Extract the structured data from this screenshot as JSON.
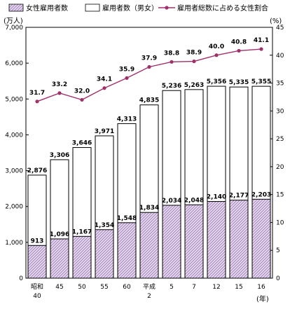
{
  "chart_data": {
    "type": "bar",
    "categories": [
      "昭和\n40",
      "45",
      "50",
      "55",
      "60",
      "平成\n2",
      "5",
      "7",
      "12",
      "15",
      "16"
    ],
    "series": [
      {
        "name": "雇用者数（男女）",
        "values": [
          2876,
          3306,
          3646,
          3971,
          4313,
          4835,
          5236,
          5263,
          5356,
          5335,
          5355
        ],
        "color": "#ffffff"
      },
      {
        "name": "女性雇用者数",
        "values": [
          913,
          1096,
          1167,
          1354,
          1548,
          1834,
          2034,
          2048,
          2140,
          2177,
          2203
        ],
        "color": "#d9c8e6"
      },
      {
        "name": "雇用者総数に占める女性割合",
        "values": [
          31.7,
          33.2,
          32.0,
          34.1,
          35.9,
          37.9,
          38.8,
          38.9,
          40.0,
          40.8,
          41.1
        ],
        "color": "#a0306a",
        "axis": "right"
      }
    ],
    "bar_labels": {
      "total": [
        "2,876",
        "3,306",
        "3,646",
        "3,971",
        "4,313",
        "4,835",
        "5,236",
        "5,263",
        "5,356",
        "5,335",
        "5,355"
      ],
      "female": [
        "913",
        "1,096",
        "1,167",
        "1,354",
        "1,548",
        "1,834",
        "2,034",
        "2,048",
        "2,140",
        "2,177",
        "2,203"
      ],
      "ratio": [
        "31.7",
        "33.2",
        "32.0",
        "34.1",
        "35.9",
        "37.9",
        "38.8",
        "38.9",
        "40.0",
        "40.8",
        "41.1"
      ]
    },
    "left_axis": {
      "unit": "(万人)",
      "ylim": [
        0,
        7000
      ],
      "ticks": [
        "0",
        "1,000",
        "2,000",
        "3,000",
        "4,000",
        "5,000",
        "6,000",
        "7,000"
      ]
    },
    "right_axis": {
      "unit": "(%)",
      "ylim": [
        0,
        45
      ],
      "ticks": [
        "0",
        "5",
        "10",
        "15",
        "20",
        "25",
        "30",
        "35",
        "40",
        "45"
      ]
    },
    "xlabel": "(年)",
    "legend": {
      "position": "top",
      "entries": [
        "女性雇用者数",
        "雇用者数（男女）",
        "雇用者総数に占める女性割合"
      ]
    },
    "grid": false
  }
}
